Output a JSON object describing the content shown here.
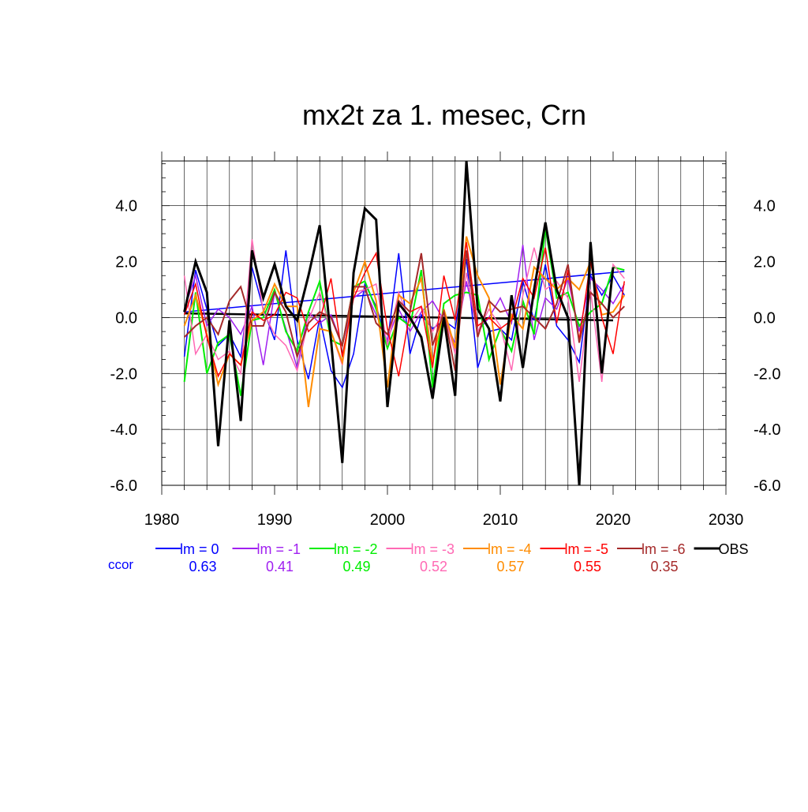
{
  "chart_data": {
    "type": "line",
    "title": "mx2t za 1. mesec, Crn",
    "xlim": [
      1980,
      2030
    ],
    "ylim": [
      -6.0,
      5.6
    ],
    "x_ticks": [
      1980,
      1990,
      2000,
      2010,
      2020,
      2030
    ],
    "x_tick_labels": [
      "1980",
      "1990",
      "2000",
      "2010",
      "2020",
      "2030"
    ],
    "y_ticks": [
      -6.0,
      -4.0,
      -2.0,
      0.0,
      2.0,
      4.0
    ],
    "y_tick_labels": [
      "-6.0",
      "-4.0",
      "-2.0",
      "0.0",
      "2.0",
      "4.0"
    ],
    "grid": true,
    "legend_position": "bottom",
    "ccor_label": "ccor",
    "x": [
      1982,
      1983,
      1984,
      1985,
      1986,
      1987,
      1988,
      1989,
      1990,
      1991,
      1992,
      1993,
      1994,
      1995,
      1996,
      1997,
      1998,
      1999,
      2000,
      2001,
      2002,
      2003,
      2004,
      2005,
      2006,
      2007,
      2008,
      2009,
      2010,
      2011,
      2012,
      2013,
      2014,
      2015,
      2016,
      2017,
      2018,
      2019,
      2020,
      2021
    ],
    "series": [
      {
        "name": "lm = 0",
        "ccor": "0.63",
        "color": "#0000ff",
        "width": 1.5,
        "values": [
          -1.4,
          1.7,
          0.3,
          -1.0,
          -0.6,
          -1.4,
          1.8,
          0.3,
          -0.8,
          2.4,
          -0.8,
          -2.2,
          0.0,
          -1.9,
          -2.5,
          -1.3,
          1.2,
          0.4,
          -0.9,
          2.3,
          -1.3,
          0.1,
          -0.4,
          -0.1,
          -0.4,
          2.1,
          -1.8,
          -0.5,
          -0.4,
          -0.8,
          1.3,
          -0.1,
          1.9,
          -0.3,
          -0.8,
          -1.6,
          1.5,
          0.8,
          1.5,
          0.8
        ]
      },
      {
        "name": "lm = -1",
        "ccor": "0.41",
        "color": "#a020f0",
        "width": 1.5,
        "values": [
          0.3,
          1.5,
          -0.3,
          0.3,
          0.0,
          -0.6,
          0.4,
          -1.7,
          0.9,
          -0.4,
          -1.8,
          0.2,
          -0.2,
          0.1,
          -1.0,
          0.7,
          1.0,
          0.1,
          -0.8,
          0.3,
          -0.5,
          0.2,
          0.6,
          -0.1,
          -0.9,
          1.3,
          -0.5,
          0.0,
          0.7,
          -0.2,
          2.6,
          -0.8,
          0.7,
          0.3,
          1.4,
          -0.5,
          1.4,
          1.0,
          0.5,
          1.2
        ]
      },
      {
        "name": "lm = -2",
        "ccor": "0.49",
        "color": "#00ee00",
        "width": 2,
        "values": [
          -2.3,
          0.9,
          -2.0,
          -0.9,
          -0.6,
          -2.8,
          -0.1,
          0.0,
          1.0,
          -0.5,
          -1.2,
          0.2,
          1.3,
          -0.8,
          -1.0,
          1.1,
          1.3,
          0.3,
          -1.1,
          0.0,
          -0.3,
          1.7,
          -2.5,
          0.5,
          0.8,
          0.9,
          0.8,
          -1.5,
          -0.4,
          -1.2,
          0.6,
          -0.6,
          3.2,
          0.7,
          0.9,
          -0.3,
          0.2,
          0.5,
          1.8,
          1.7
        ]
      },
      {
        "name": "lm = -3",
        "ccor": "0.52",
        "color": "#ff69b4",
        "width": 1.5,
        "values": [
          1.5,
          -1.3,
          -0.6,
          -1.5,
          -1.2,
          -2.0,
          2.8,
          0.2,
          -0.6,
          -1.0,
          -1.9,
          -0.1,
          0.9,
          -0.5,
          -1.7,
          0.9,
          1.0,
          1.2,
          -1.0,
          0.9,
          -0.2,
          0.4,
          -0.5,
          0.2,
          -1.3,
          1.6,
          -0.5,
          0.3,
          -0.3,
          -1.9,
          0.8,
          2.5,
          1.0,
          1.3,
          0.7,
          -2.3,
          1.0,
          -2.3,
          1.9,
          1.4
        ]
      },
      {
        "name": "lm = -4",
        "ccor": "0.57",
        "color": "#ff8c00",
        "width": 2,
        "values": [
          -0.3,
          0.8,
          -0.6,
          -2.4,
          -1.3,
          -1.7,
          -0.1,
          0.2,
          1.2,
          0.4,
          0.4,
          -3.2,
          -0.4,
          -0.5,
          -1.6,
          0.9,
          2.0,
          0.6,
          -2.5,
          0.8,
          0.5,
          1.4,
          -1.6,
          0.3,
          -1.1,
          2.9,
          1.5,
          0.7,
          -2.4,
          0.1,
          -0.4,
          1.8,
          1.4,
          1.0,
          1.4,
          1.0,
          2.0,
          0.1,
          0.2,
          0.8
        ]
      },
      {
        "name": "lm = -5",
        "ccor": "0.55",
        "color": "#ff0000",
        "width": 1.5,
        "values": [
          0.1,
          1.2,
          -0.7,
          -2.1,
          -1.3,
          -1.7,
          0.2,
          -0.1,
          0.1,
          0.9,
          0.7,
          -0.5,
          -0.1,
          1.4,
          -1.4,
          0.7,
          1.6,
          2.3,
          -0.4,
          -2.1,
          0.2,
          0.4,
          -1.8,
          1.5,
          -0.1,
          2.7,
          -0.3,
          0.0,
          -0.4,
          -0.1,
          1.4,
          0.7,
          2.5,
          -0.2,
          1.7,
          -0.8,
          2.0,
          0.0,
          -1.3,
          1.3
        ]
      },
      {
        "name": "lm = -6",
        "ccor": "0.35",
        "color": "#a52a2a",
        "width": 2,
        "values": [
          -0.7,
          -0.3,
          0.0,
          -0.6,
          0.6,
          1.1,
          -0.3,
          -0.3,
          0.9,
          0.2,
          -1.4,
          -0.2,
          0.2,
          0.0,
          -1.0,
          1.1,
          1.1,
          -0.2,
          -0.6,
          0.6,
          0.2,
          2.3,
          -1.0,
          0.2,
          -1.9,
          2.4,
          -0.7,
          0.6,
          0.2,
          0.3,
          0.4,
          0.0,
          -0.4,
          0.5,
          1.9,
          -0.9,
          0.9,
          0.5,
          0.0,
          0.4
        ]
      },
      {
        "name": "OBS",
        "ccor": "",
        "color": "#000000",
        "width": 3,
        "values": [
          0.2,
          2.0,
          0.9,
          -4.6,
          -0.1,
          -3.7,
          2.4,
          0.7,
          1.9,
          0.4,
          -0.1,
          1.5,
          3.3,
          -0.8,
          -5.2,
          1.6,
          3.9,
          3.5,
          -3.2,
          0.5,
          0.0,
          -0.7,
          -2.9,
          0.0,
          -2.8,
          5.6,
          0.3,
          -0.4,
          -3.0,
          0.8,
          -1.8,
          1.0,
          3.4,
          1.0,
          0.0,
          -6.0,
          2.7,
          -2.0,
          1.8,
          null
        ]
      }
    ],
    "trend_lines": [
      {
        "series": "lm = 0",
        "color": "#0000ff",
        "x": [
          1982,
          2021
        ],
        "y": [
          0.2,
          1.65
        ],
        "width": 1.5
      },
      {
        "series": "OBS",
        "color": "#000000",
        "x": [
          1982,
          2020
        ],
        "y": [
          0.15,
          -0.1
        ],
        "width": 2.5
      }
    ]
  }
}
